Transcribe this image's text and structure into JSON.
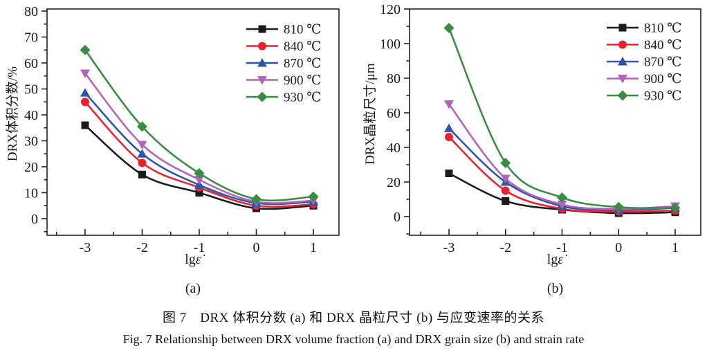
{
  "figure": {
    "caption_zh": "图 7　DRX 体积分数 (a) 和 DRX 晶粒尺寸 (b) 与应变速率的关系",
    "caption_en": "Fig. 7  Relationship between DRX volume fraction (a) and DRX grain size (b) and strain rate"
  },
  "colors": {
    "black": "#1b1b1b",
    "red": "#e8232e",
    "blue": "#2d56a8",
    "purple": "#b264ba",
    "green": "#3a8c43",
    "axis": "#222222"
  },
  "chart_data": [
    {
      "type": "line",
      "panel": "(a)",
      "x": [
        -3,
        -2,
        -1,
        0,
        1
      ],
      "xtick_labels": [
        "-3",
        "-2",
        "-1",
        "0",
        "1"
      ],
      "xlabel": "lgε̇",
      "ylabel": "DRX体积分数/%",
      "ylim": [
        0,
        80
      ],
      "ytick_step": 10,
      "grid": false,
      "legend_position": "top-right",
      "series": [
        {
          "name": "810 ℃",
          "color_key": "black",
          "marker": "square",
          "values": [
            36,
            17,
            10,
            4,
            5
          ]
        },
        {
          "name": "840 ℃",
          "color_key": "red",
          "marker": "circle",
          "values": [
            45,
            21.5,
            12,
            5,
            5.5
          ]
        },
        {
          "name": "870 ℃",
          "color_key": "blue",
          "marker": "triangle-up",
          "values": [
            48.5,
            25,
            13,
            6,
            6.5
          ]
        },
        {
          "name": "900 ℃",
          "color_key": "purple",
          "marker": "triangle-down",
          "values": [
            56,
            28.5,
            15,
            6.5,
            7
          ]
        },
        {
          "name": "930 ℃",
          "color_key": "green",
          "marker": "diamond",
          "values": [
            65,
            35.5,
            17.5,
            7.5,
            8.5
          ]
        }
      ]
    },
    {
      "type": "line",
      "panel": "(b)",
      "x": [
        -3,
        -2,
        -1,
        0,
        1
      ],
      "xtick_labels": [
        "-3",
        "-2",
        "-1",
        "0",
        "1"
      ],
      "xlabel": "lgε̇",
      "ylabel": "DRX晶粒尺寸/μm",
      "ylim": [
        0,
        120
      ],
      "ytick_step": 20,
      "grid": false,
      "legend_position": "top-right",
      "series": [
        {
          "name": "810 ℃",
          "color_key": "black",
          "marker": "square",
          "values": [
            25,
            9,
            4,
            2,
            2.5
          ]
        },
        {
          "name": "840 ℃",
          "color_key": "red",
          "marker": "circle",
          "values": [
            46,
            15,
            4.5,
            3,
            3.5
          ]
        },
        {
          "name": "870 ℃",
          "color_key": "blue",
          "marker": "triangle-up",
          "values": [
            51,
            20,
            6,
            4,
            5
          ]
        },
        {
          "name": "900 ℃",
          "color_key": "purple",
          "marker": "triangle-down",
          "values": [
            65,
            22,
            7,
            4.5,
            6
          ]
        },
        {
          "name": "930 ℃",
          "color_key": "green",
          "marker": "diamond",
          "values": [
            109,
            31,
            11,
            5.5,
            5
          ]
        }
      ]
    }
  ]
}
